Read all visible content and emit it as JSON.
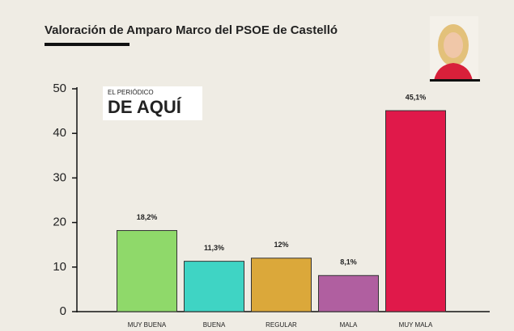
{
  "chart_data": {
    "type": "bar",
    "title": "Valoración de Amparo Marco del PSOE de Castelló",
    "categories": [
      "MUY BUENA",
      "BUENA",
      "REGULAR",
      "MALA",
      "MUY MALA"
    ],
    "values": [
      18.2,
      11.3,
      12,
      8.1,
      45.1
    ],
    "value_labels": [
      "18,2%",
      "11,3%",
      "12%",
      "8,1%",
      "45,1%"
    ],
    "colors": [
      "#8fd96a",
      "#3fd4c4",
      "#dba83a",
      "#b05fa0",
      "#e0194a"
    ],
    "ylim": [
      0,
      50
    ],
    "yticks": [
      0,
      10,
      20,
      30,
      40,
      50
    ],
    "grid": false
  },
  "logo": {
    "top": "EL PERIÓDICO",
    "main": "DE AQUÍ"
  }
}
